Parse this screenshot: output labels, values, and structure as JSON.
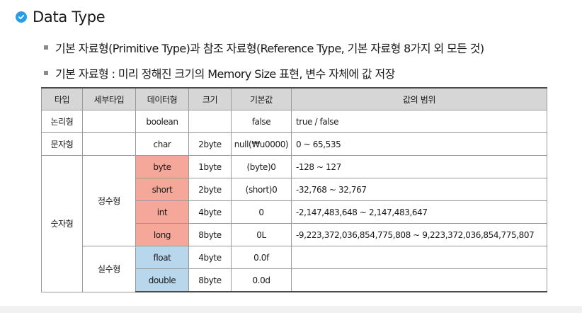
{
  "heading": "Data Type",
  "bullets": [
    "기본 자료형(Primitive Type)과 참조 자료형(Reference Type, 기본 자료형 8가지 외 모든 것)",
    "기본 자료형 : 미리 정해진 크기의 Memory Size 표현, 변수 자체에 값 저장"
  ],
  "table": {
    "headers": [
      "타입",
      "세부타입",
      "데이터형",
      "크기",
      "기본값",
      "값의 범위"
    ],
    "groups": {
      "logical": "논리형",
      "character": "문자형",
      "numeric": "숫자형",
      "integer": "정수형",
      "real": "실수형"
    },
    "rows": [
      {
        "type": "boolean",
        "size": "",
        "default": "false",
        "range": "true / false"
      },
      {
        "type": "char",
        "size": "2byte",
        "default": "null(₩u0000)",
        "range": "0 ~ 65,535"
      },
      {
        "type": "byte",
        "size": "1byte",
        "default": "(byte)0",
        "range": "-128 ~ 127"
      },
      {
        "type": "short",
        "size": "2byte",
        "default": "(short)0",
        "range": "-32,768 ~ 32,767"
      },
      {
        "type": "int",
        "size": "4byte",
        "default": "0",
        "range": "-2,147,483,648 ~ 2,147,483,647"
      },
      {
        "type": "long",
        "size": "8byte",
        "default": "0L",
        "range": "-9,223,372,036,854,775,808 ~ 9,223,372,036,854,775,807"
      },
      {
        "type": "float",
        "size": "4byte",
        "default": "0.0f",
        "range": ""
      },
      {
        "type": "double",
        "size": "8byte",
        "default": "0.0d",
        "range": ""
      }
    ],
    "colors": {
      "integer_highlight": "#f5a79a",
      "real_highlight": "#b8d6ec",
      "header_bg": "#d6d6d6"
    }
  },
  "icons": {
    "heading_icon": "check-circle-icon"
  }
}
